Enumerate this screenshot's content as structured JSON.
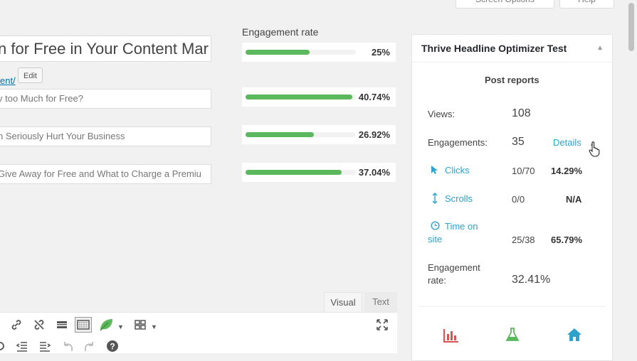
{
  "top_buttons": {
    "screen_options": "Screen Options",
    "help": "Help"
  },
  "headline": {
    "title": "n for Free in Your Content Mar",
    "permalink": "ent/",
    "edit_label": "Edit",
    "variations": [
      "v too Much for Free?",
      "n Seriously Hurt Your Business",
      " Give Away for Free and What to Charge a Premiu"
    ]
  },
  "engagement": {
    "title": "Engagement rate",
    "rows": [
      {
        "pct_text": "25%",
        "fill": 0.58
      },
      {
        "pct_text": "40.74%",
        "fill": 0.97
      },
      {
        "pct_text": "26.92%",
        "fill": 0.62
      },
      {
        "pct_text": "37.04%",
        "fill": 0.87
      }
    ]
  },
  "editor": {
    "tab_visual": "Visual",
    "tab_text": "Text"
  },
  "panel": {
    "title": "Thrive Headline Optimizer Test",
    "toggle": "▲",
    "post_reports": "Post reports",
    "views_label": "Views:",
    "views_value": "108",
    "engagements_label": "Engagements:",
    "engagements_value": "35",
    "details_link": "Details",
    "clicks_label": "Clicks",
    "clicks_count": "10/70",
    "clicks_pct": "14.29%",
    "scrolls_label": "Scrolls",
    "scrolls_count": "0/0",
    "scrolls_pct": "N/A",
    "time_label_1": "Time on",
    "time_label_2": "site",
    "time_count": "25/38",
    "time_pct": "65.79%",
    "eng_rate_label_1": "Engagement",
    "eng_rate_label_2": "rate:",
    "eng_rate_value": "32.41%"
  },
  "colors": {
    "accent": "#2ea2cc",
    "bar_green": "#5cb85c",
    "chart_red": "#d9534f",
    "flask_green": "#5cb85c"
  }
}
